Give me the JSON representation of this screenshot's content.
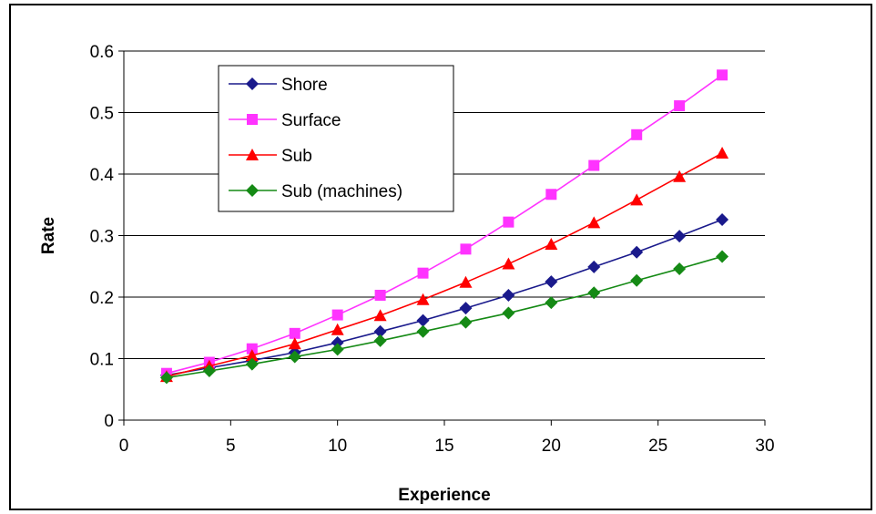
{
  "chart_data": {
    "type": "line",
    "title": "",
    "xlabel": "Experience",
    "ylabel": "Rate",
    "xlim": [
      0,
      30
    ],
    "ylim": [
      0,
      0.6
    ],
    "xticks": [
      0,
      5,
      10,
      15,
      20,
      25,
      30
    ],
    "yticks": [
      0,
      0.1,
      0.2,
      0.3,
      0.4,
      0.5,
      0.6
    ],
    "grid": "horizontal",
    "legend_position": "top-left",
    "x": [
      2,
      4,
      6,
      8,
      10,
      12,
      14,
      16,
      18,
      20,
      22,
      24,
      26,
      28
    ],
    "series": [
      {
        "name": "Shore",
        "color": "#1a1a8c",
        "marker": "diamond",
        "values": [
          0.073,
          0.085,
          0.097,
          0.11,
          0.126,
          0.144,
          0.162,
          0.182,
          0.203,
          0.225,
          0.249,
          0.273,
          0.299,
          0.326
        ]
      },
      {
        "name": "Surface",
        "color": "#ff33ff",
        "marker": "square",
        "values": [
          0.076,
          0.094,
          0.116,
          0.141,
          0.171,
          0.203,
          0.239,
          0.278,
          0.322,
          0.367,
          0.414,
          0.464,
          0.511,
          0.561
        ]
      },
      {
        "name": "Sub",
        "color": "#ff0000",
        "marker": "triangle",
        "values": [
          0.071,
          0.088,
          0.105,
          0.124,
          0.147,
          0.17,
          0.196,
          0.224,
          0.254,
          0.286,
          0.321,
          0.358,
          0.396,
          0.434
        ]
      },
      {
        "name": "Sub (machines)",
        "color": "#158a15",
        "marker": "diamond",
        "values": [
          0.069,
          0.08,
          0.091,
          0.103,
          0.115,
          0.129,
          0.144,
          0.159,
          0.174,
          0.191,
          0.207,
          0.227,
          0.246,
          0.266
        ]
      }
    ]
  }
}
